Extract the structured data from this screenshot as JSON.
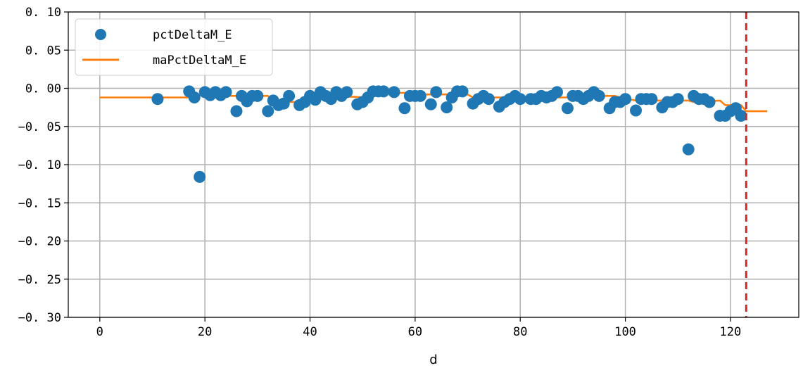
{
  "chart_data": {
    "type": "scatter",
    "xlabel": "d",
    "ylabel": "",
    "xlim": [
      -6,
      133
    ],
    "ylim": [
      -0.3,
      0.1
    ],
    "xticks": [
      0,
      20,
      40,
      60,
      80,
      100,
      120
    ],
    "yticks": [
      0.1,
      0.05,
      0.0,
      -0.05,
      -0.1,
      -0.15,
      -0.2,
      -0.25,
      -0.3
    ],
    "xtick_labels": [
      "0",
      "20",
      "40",
      "60",
      "80",
      "100",
      "120"
    ],
    "ytick_labels": [
      "0. 10",
      "0. 05",
      "0. 00",
      "−0. 05",
      "−0. 10",
      "−0. 15",
      "−0. 20",
      "−0. 25",
      "−0. 30"
    ],
    "grid": true,
    "legend_position": "top-left",
    "vline": {
      "x": 123,
      "color": "#d62728",
      "style": "dashed"
    },
    "series": [
      {
        "name": "pctDeltaM_E",
        "kind": "scatter",
        "color": "#1f77b4",
        "points": [
          [
            11,
            -0.014
          ],
          [
            17,
            -0.004
          ],
          [
            18,
            -0.012
          ],
          [
            19,
            -0.116
          ],
          [
            20,
            -0.005
          ],
          [
            21,
            -0.009
          ],
          [
            22,
            -0.005
          ],
          [
            23,
            -0.009
          ],
          [
            24,
            -0.005
          ],
          [
            26,
            -0.03
          ],
          [
            27,
            -0.01
          ],
          [
            28,
            -0.017
          ],
          [
            29,
            -0.01
          ],
          [
            30,
            -0.01
          ],
          [
            32,
            -0.03
          ],
          [
            33,
            -0.016
          ],
          [
            34,
            -0.022
          ],
          [
            35,
            -0.02
          ],
          [
            36,
            -0.01
          ],
          [
            38,
            -0.022
          ],
          [
            39,
            -0.018
          ],
          [
            40,
            -0.01
          ],
          [
            41,
            -0.015
          ],
          [
            42,
            -0.005
          ],
          [
            43,
            -0.01
          ],
          [
            44,
            -0.014
          ],
          [
            45,
            -0.005
          ],
          [
            46,
            -0.01
          ],
          [
            47,
            -0.005
          ],
          [
            49,
            -0.021
          ],
          [
            50,
            -0.018
          ],
          [
            51,
            -0.012
          ],
          [
            52,
            -0.004
          ],
          [
            53,
            -0.004
          ],
          [
            54,
            -0.004
          ],
          [
            56,
            -0.005
          ],
          [
            58,
            -0.026
          ],
          [
            59,
            -0.01
          ],
          [
            60,
            -0.01
          ],
          [
            61,
            -0.01
          ],
          [
            63,
            -0.021
          ],
          [
            64,
            -0.005
          ],
          [
            66,
            -0.025
          ],
          [
            67,
            -0.012
          ],
          [
            68,
            -0.004
          ],
          [
            69,
            -0.004
          ],
          [
            71,
            -0.02
          ],
          [
            72,
            -0.014
          ],
          [
            73,
            -0.01
          ],
          [
            74,
            -0.014
          ],
          [
            76,
            -0.024
          ],
          [
            77,
            -0.018
          ],
          [
            78,
            -0.014
          ],
          [
            79,
            -0.01
          ],
          [
            80,
            -0.014
          ],
          [
            82,
            -0.014
          ],
          [
            83,
            -0.014
          ],
          [
            84,
            -0.01
          ],
          [
            85,
            -0.012
          ],
          [
            86,
            -0.01
          ],
          [
            87,
            -0.005
          ],
          [
            89,
            -0.026
          ],
          [
            90,
            -0.01
          ],
          [
            91,
            -0.01
          ],
          [
            92,
            -0.014
          ],
          [
            93,
            -0.01
          ],
          [
            94,
            -0.005
          ],
          [
            95,
            -0.01
          ],
          [
            97,
            -0.026
          ],
          [
            98,
            -0.018
          ],
          [
            99,
            -0.018
          ],
          [
            100,
            -0.014
          ],
          [
            102,
            -0.029
          ],
          [
            103,
            -0.014
          ],
          [
            104,
            -0.014
          ],
          [
            105,
            -0.014
          ],
          [
            107,
            -0.025
          ],
          [
            108,
            -0.018
          ],
          [
            109,
            -0.018
          ],
          [
            110,
            -0.014
          ],
          [
            112,
            -0.08
          ],
          [
            113,
            -0.01
          ],
          [
            114,
            -0.014
          ],
          [
            115,
            -0.014
          ],
          [
            116,
            -0.018
          ],
          [
            118,
            -0.036
          ],
          [
            119,
            -0.036
          ],
          [
            120,
            -0.03
          ],
          [
            121,
            -0.026
          ],
          [
            122,
            -0.036
          ]
        ]
      },
      {
        "name": "maPctDeltaM_E",
        "kind": "line",
        "color": "#ff7f0e",
        "points": [
          [
            0,
            -0.012
          ],
          [
            17,
            -0.012
          ],
          [
            19,
            -0.009
          ],
          [
            24,
            -0.009
          ],
          [
            25,
            -0.01
          ],
          [
            32,
            -0.01
          ],
          [
            33,
            -0.018
          ],
          [
            40,
            -0.018
          ],
          [
            41,
            -0.015
          ],
          [
            42,
            -0.012
          ],
          [
            43,
            -0.014
          ],
          [
            44,
            -0.01
          ],
          [
            51,
            -0.012
          ],
          [
            52,
            -0.008
          ],
          [
            54,
            -0.006
          ],
          [
            58,
            -0.006
          ],
          [
            59,
            -0.008
          ],
          [
            70,
            -0.008
          ],
          [
            71,
            -0.012
          ],
          [
            79,
            -0.012
          ],
          [
            80,
            -0.012
          ],
          [
            89,
            -0.012
          ],
          [
            90,
            -0.01
          ],
          [
            98,
            -0.01
          ],
          [
            99,
            -0.012
          ],
          [
            102,
            -0.016
          ],
          [
            103,
            -0.018
          ],
          [
            106,
            -0.016
          ],
          [
            111,
            -0.016
          ],
          [
            112,
            -0.016
          ],
          [
            113,
            -0.018
          ],
          [
            118,
            -0.016
          ],
          [
            119,
            -0.022
          ],
          [
            122,
            -0.022
          ],
          [
            123,
            -0.03
          ],
          [
            127,
            -0.03
          ]
        ]
      }
    ]
  }
}
